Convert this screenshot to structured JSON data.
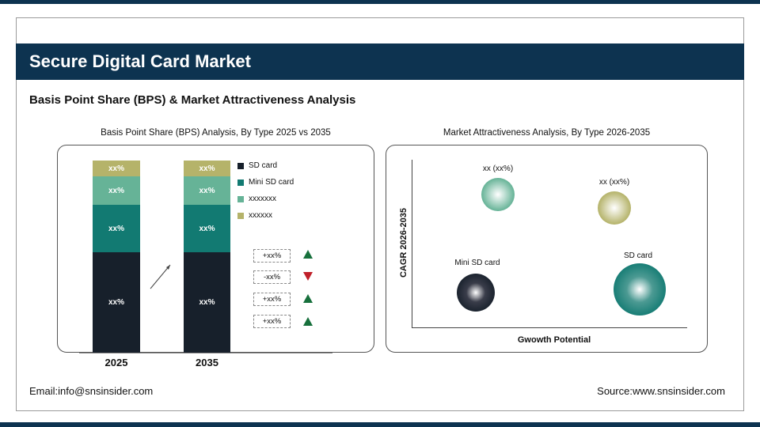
{
  "header": {
    "title": "Secure Digital Card Market",
    "subtitle": "Basis Point Share (BPS) & Market Attractiveness Analysis"
  },
  "colors": {
    "header": "#0d3350",
    "sd_card": "#17202b",
    "mini_sd_card": "#127a72",
    "xxxxxxx": "#66b397",
    "xxxxxx": "#b5b36a",
    "up": "#17703c",
    "down": "#c0202a"
  },
  "chart_data": [
    {
      "type": "bar",
      "stacked": true,
      "title": "Basis Point Share (BPS) Analysis, By Type 2025 vs 2035",
      "categories": [
        "2025",
        "2035"
      ],
      "series": [
        {
          "name": "SD card",
          "labels": [
            "xx%",
            "xx%"
          ]
        },
        {
          "name": "Mini SD card",
          "labels": [
            "xx%",
            "xx%"
          ]
        },
        {
          "name": "xxxxxxx",
          "labels": [
            "xx%",
            "xx%"
          ]
        },
        {
          "name": "xxxxxx",
          "labels": [
            "xx%",
            "xx%"
          ]
        }
      ],
      "changes": [
        {
          "label": "+xx%",
          "direction": "up"
        },
        {
          "label": "-xx%",
          "direction": "down"
        },
        {
          "label": "+xx%",
          "direction": "up"
        },
        {
          "label": "+xx%",
          "direction": "up"
        }
      ],
      "legend": "right"
    },
    {
      "type": "scatter",
      "title": "Market Attractiveness Analysis, By Type 2026-2035",
      "xlabel": "Gwowth Potential",
      "ylabel": "CAGR 2026-2035",
      "points": [
        {
          "label": "xx (xx%)",
          "color": "#66b397"
        },
        {
          "label": "xx (xx%)",
          "color": "#b5b36a"
        },
        {
          "label": "Mini SD card",
          "color": "#17202b"
        },
        {
          "label": "SD card",
          "color": "#127a72"
        }
      ]
    }
  ],
  "footer": {
    "email": "Email:info@snsinsider.com",
    "source": "Source:www.snsinsider.com"
  }
}
